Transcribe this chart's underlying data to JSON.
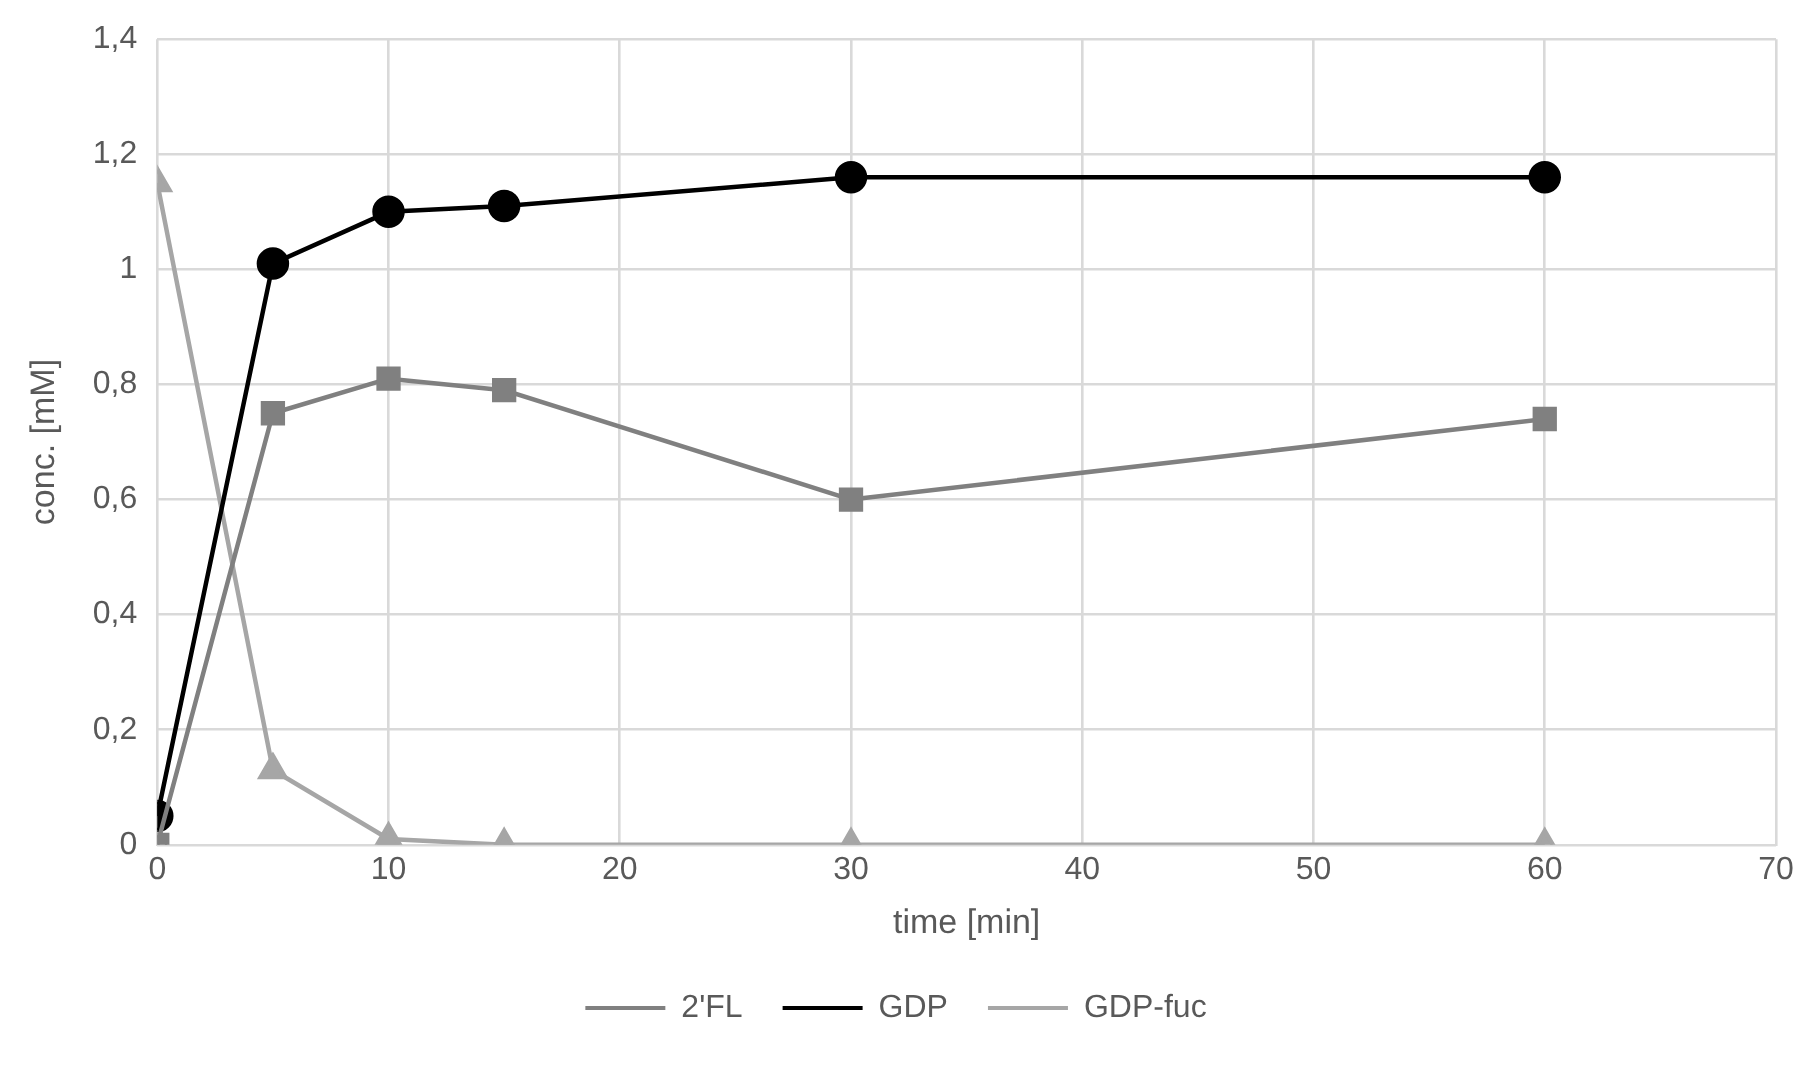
{
  "chart_data": {
    "type": "line",
    "xlabel": "time [min]",
    "ylabel": "conc. [mM]",
    "x": [
      0,
      5,
      10,
      15,
      30,
      60
    ],
    "series": [
      {
        "name": "2'FL",
        "color": "#808080",
        "marker": "square",
        "values": [
          0,
          0.75,
          0.81,
          0.79,
          0.6,
          0.74
        ]
      },
      {
        "name": "GDP",
        "color": "#000000",
        "marker": "circle",
        "values": [
          0.05,
          1.01,
          1.1,
          1.11,
          1.16,
          1.16
        ]
      },
      {
        "name": "GDP-fuc",
        "color": "#a6a6a6",
        "marker": "triangle",
        "values": [
          1.15,
          0.13,
          0.01,
          0,
          0,
          0
        ]
      }
    ],
    "xlim": [
      0,
      70
    ],
    "xticks": [
      0,
      10,
      20,
      30,
      40,
      50,
      60,
      70
    ],
    "ylim": [
      0,
      1.4
    ],
    "yticks": [
      0,
      {
        "value": 0.2,
        "label": "0,2"
      },
      {
        "value": 0.4,
        "label": "0,4"
      },
      {
        "value": 0.6,
        "label": "0,6"
      },
      {
        "value": 0.8,
        "label": "0,8"
      },
      1,
      {
        "value": 1.2,
        "label": "1,2"
      },
      {
        "value": 1.4,
        "label": "1,4"
      }
    ],
    "grid": true,
    "legend": "bottom",
    "line_style": "solid"
  }
}
